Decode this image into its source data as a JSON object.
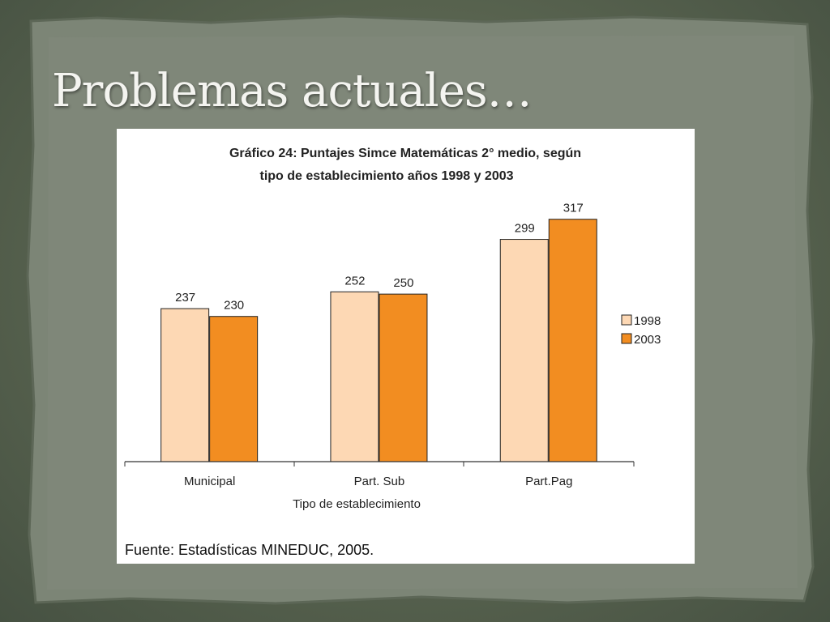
{
  "slide": {
    "title": "Problemas actuales…"
  },
  "colors": {
    "series_1998": "#fdd8b4",
    "series_2003": "#f28d21",
    "background": "#58634f",
    "paper": "#7b8475"
  },
  "chart_data": {
    "type": "bar",
    "title_line1": "Gráfico 24: Puntajes Simce Matemáticas 2° medio, según",
    "title_line2": "tipo de establecimiento años 1998 y 2003",
    "xlabel": "Tipo de establecimiento",
    "ylabel": "",
    "categories": [
      "Municipal",
      "Part. Sub",
      "Part.Pag"
    ],
    "series": [
      {
        "name": "1998",
        "values": [
          237,
          252,
          299
        ]
      },
      {
        "name": "2003",
        "values": [
          230,
          250,
          317
        ]
      }
    ],
    "ylim": [
      100,
      340
    ],
    "grid": false,
    "legend": "right",
    "source": "Fuente: Estadísticas MINEDUC, 2005."
  }
}
